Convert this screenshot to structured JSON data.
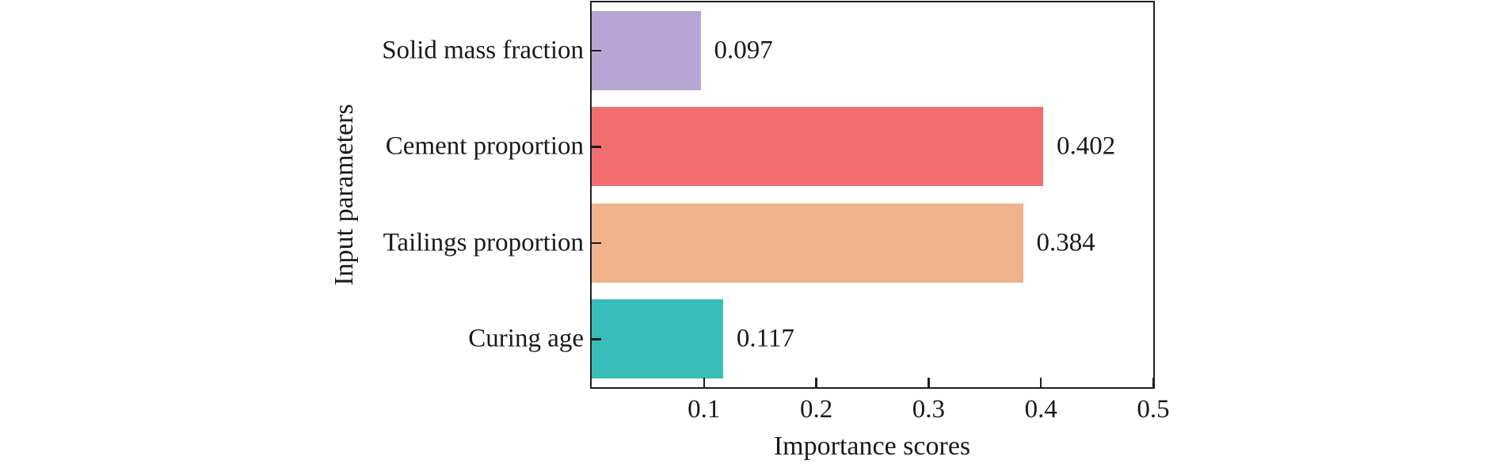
{
  "chart_data": {
    "type": "bar",
    "orientation": "horizontal",
    "title": "",
    "xlabel": "Importance scores",
    "ylabel": "Input parameters",
    "categories": [
      "Solid mass fraction",
      "Cement proportion",
      "Tailings proportion",
      "Curing age"
    ],
    "values": [
      0.097,
      0.402,
      0.384,
      0.117
    ],
    "value_labels": [
      "0.097",
      "0.402",
      "0.384",
      "0.117"
    ],
    "bar_colors": [
      "#b9a5d3",
      "#f16d70",
      "#f0b28b",
      "#39bdb8"
    ],
    "xlim": [
      0,
      0.5
    ],
    "xticks": [
      0.1,
      0.2,
      0.3,
      0.4,
      0.5
    ],
    "xtick_labels": [
      "0.1",
      "0.2",
      "0.3",
      "0.4",
      "0.5"
    ],
    "grid": false,
    "legend": null,
    "axis_color": "#1f1f1f",
    "text_color": "#1a1a1a",
    "background_color": "#ffffff"
  }
}
